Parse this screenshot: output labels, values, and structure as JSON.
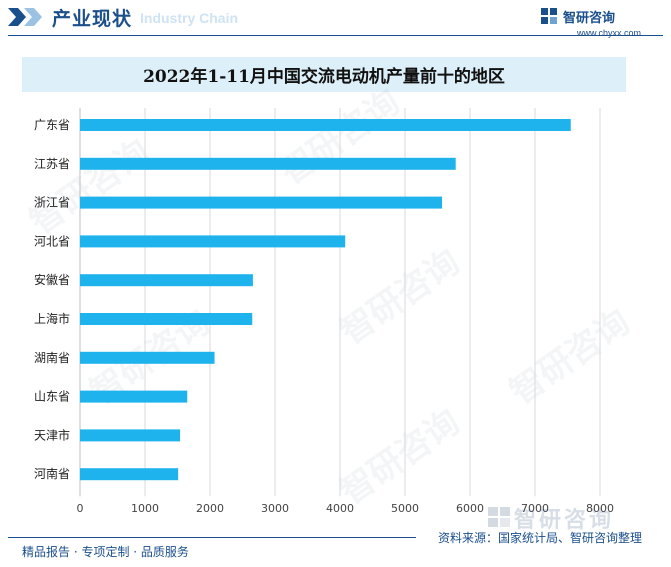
{
  "header": {
    "section_title": "产业现状",
    "section_subtitle": "Industry Chain",
    "brand_name": "智研咨询",
    "brand_url": "www.chyxx.com"
  },
  "footer": {
    "tagline": "精品报告 · 专项定制 · 品质服务",
    "source": "资料来源：国家统计局、智研咨询整理",
    "brand_watermark": "智研咨询"
  },
  "colors": {
    "bar": "#1fb3ee",
    "accent": "#1b4f8c",
    "title_bg": "#ddeff9"
  },
  "chart_data": {
    "type": "bar",
    "orientation": "horizontal",
    "title": "2022年1-11月中国交流电动机产量前十的地区",
    "categories": [
      "广东省",
      "江苏省",
      "浙江省",
      "河北省",
      "安徽省",
      "上海市",
      "湖南省",
      "山东省",
      "天津市",
      "河南省"
    ],
    "values": [
      7550,
      5780,
      5570,
      4080,
      2660,
      2650,
      2070,
      1650,
      1540,
      1510
    ],
    "xlim": [
      0,
      8000
    ],
    "xticks": [
      0,
      1000,
      2000,
      3000,
      4000,
      5000,
      6000,
      7000,
      8000
    ],
    "xlabel": "",
    "ylabel": "",
    "grid": "vertical",
    "legend": "none"
  }
}
